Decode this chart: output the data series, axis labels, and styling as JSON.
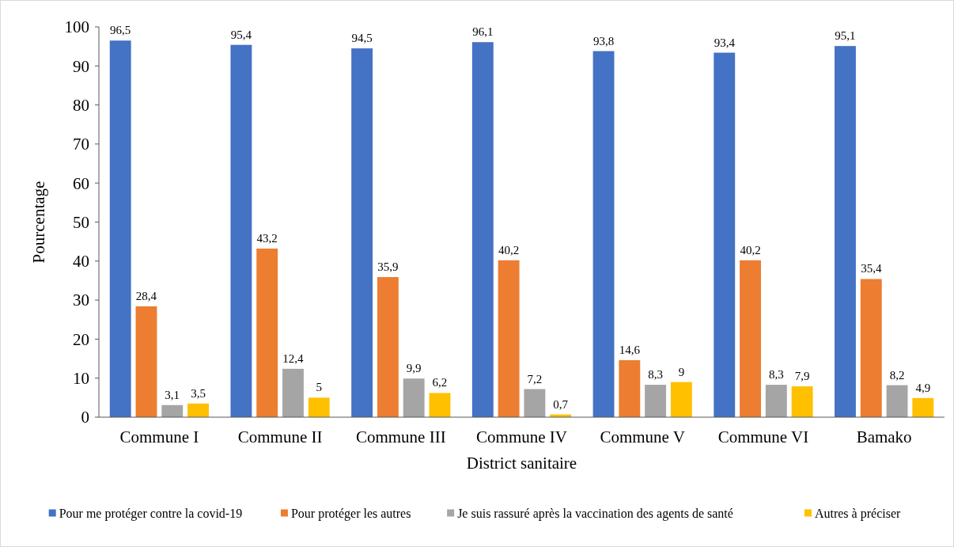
{
  "chart_data": {
    "type": "bar",
    "xlabel": "District sanitaire",
    "ylabel": "Pourcentage",
    "categories": [
      "Commune I",
      "Commune II",
      "Commune III",
      "Commune IV",
      "Commune V",
      "Commune VI",
      "Bamako"
    ],
    "series": [
      {
        "name": "Pour me protéger contre la covid-19",
        "color": "#4472c4",
        "values": [
          96.5,
          95.4,
          94.5,
          96.1,
          93.8,
          93.4,
          95.1
        ],
        "value_labels": [
          "96,5",
          "95,4",
          "94,5",
          "96,1",
          "93,8",
          "93,4",
          "95,1"
        ]
      },
      {
        "name": "Pour protéger les autres",
        "color": "#ed7d31",
        "values": [
          28.4,
          43.2,
          35.9,
          40.2,
          14.6,
          40.2,
          35.4
        ],
        "value_labels": [
          "28,4",
          "43,2",
          "35,9",
          "40,2",
          "14,6",
          "40,2",
          "35,4"
        ]
      },
      {
        "name": "Je suis rassuré après la vaccination des agents de santé",
        "color": "#a5a5a5",
        "values": [
          3.1,
          12.4,
          9.9,
          7.2,
          8.3,
          8.3,
          8.2
        ],
        "value_labels": [
          "3,1",
          "12,4",
          "9,9",
          "7,2",
          "8,3",
          "8,3",
          "8,2"
        ]
      },
      {
        "name": "Autres à préciser",
        "color": "#ffc000",
        "values": [
          3.5,
          5,
          6.2,
          0.7,
          9,
          7.9,
          4.9
        ],
        "value_labels": [
          "3,5",
          "5",
          "6,2",
          "0,7",
          "9",
          "7,9",
          "4,9"
        ]
      }
    ],
    "ylim": [
      0,
      100
    ],
    "yticks": [
      0,
      10,
      20,
      30,
      40,
      50,
      60,
      70,
      80,
      90,
      100
    ],
    "grid": false,
    "legend": "bottom"
  }
}
